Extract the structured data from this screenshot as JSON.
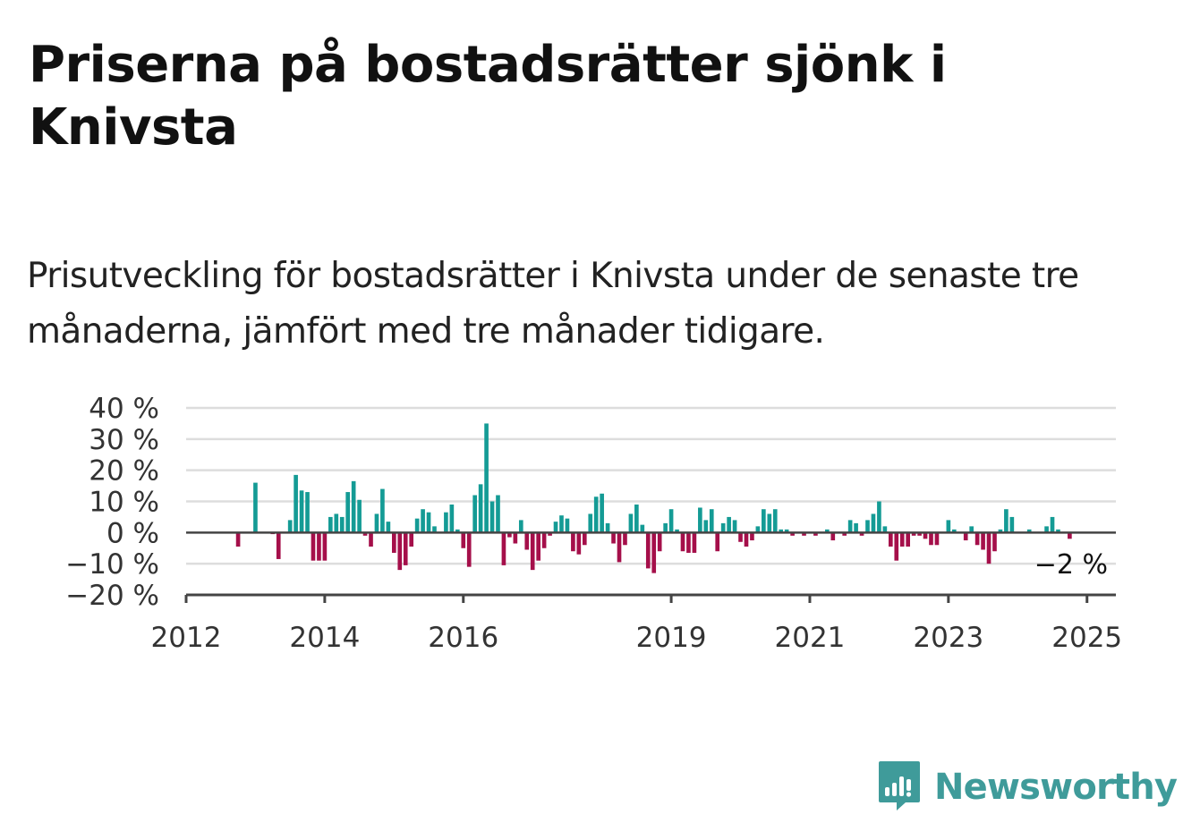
{
  "title": "Priserna på bostadsrätter sjönk i Knivsta",
  "subtitle": "Prisutveckling för bostadsrätter i Knivsta under de senaste tre månaderna, jämfört med tre månader tidigare.",
  "logo_text": "Newsworthy",
  "colors": {
    "positive": "#149b95",
    "negative": "#a50f4a",
    "grid": "#dddddd",
    "axis": "#444444",
    "logo": "#3f9b9a"
  },
  "chart_data": {
    "type": "bar",
    "x_start": "2012-01",
    "x_end": "2025-06",
    "x_ticks": [
      "2012",
      "2014",
      "2016",
      "2019",
      "2021",
      "2023",
      "2025"
    ],
    "y_ticks": [
      "40 %",
      "30 %",
      "20 %",
      "10 %",
      "0 %",
      "−10 %",
      "−20 %"
    ],
    "ylim": [
      -20,
      40
    ],
    "grid": true,
    "end_label": "−2 %",
    "series_start": "2012-10",
    "values": [
      -4.5,
      0,
      0,
      16,
      0,
      0,
      -0.5,
      -8.5,
      0,
      4,
      18.5,
      13.5,
      13,
      -9,
      -9,
      -9,
      5,
      6,
      5,
      13,
      16.5,
      10.5,
      -1,
      -4.5,
      6,
      14,
      3.5,
      -6.5,
      -12,
      -10.5,
      -4.5,
      4.5,
      7.5,
      6.5,
      2,
      0,
      6.5,
      9,
      1,
      -5,
      -11,
      12,
      15.5,
      35,
      10,
      12,
      -10.5,
      -1.5,
      -3.5,
      4,
      -5.5,
      -12,
      -9,
      -5,
      -1,
      3.5,
      5.5,
      4.5,
      -6,
      -7,
      -4,
      6,
      11.5,
      12.5,
      3,
      -3.5,
      -9.5,
      -4,
      6,
      9,
      2.5,
      -11.5,
      -13,
      -6,
      3,
      7.5,
      1,
      -6,
      -6.5,
      -6.5,
      8,
      4,
      7.5,
      -6,
      3,
      5,
      4,
      -3,
      -4.5,
      -2.5,
      2,
      7.5,
      6,
      7.5,
      1,
      1,
      -1,
      0,
      -1,
      0,
      -1,
      0,
      1,
      -2.5,
      0,
      -1,
      4,
      3,
      -1,
      4,
      6,
      10,
      2,
      -4.5,
      -9,
      -4.5,
      -4.5,
      -1,
      -1,
      -2,
      -4,
      -4,
      0,
      4,
      1,
      0,
      -2.5,
      2,
      -4,
      -5.5,
      -10,
      -6,
      1,
      7.5,
      5,
      0,
      0,
      1,
      0,
      0,
      2,
      5,
      1,
      0,
      -2
    ]
  }
}
